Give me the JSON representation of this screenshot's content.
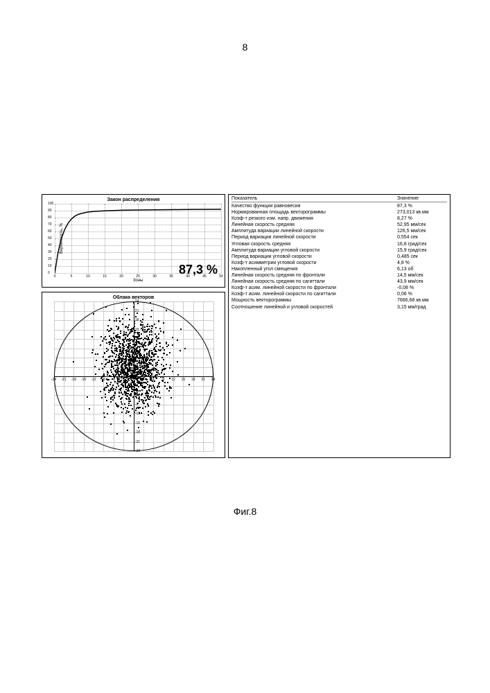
{
  "page_number": "8",
  "figure_caption": "Фиг.8",
  "line_chart": {
    "type": "line",
    "title": "Закон распределения",
    "ylabel": "Вероятность, %",
    "xlabel": "Зоны",
    "ylim": [
      0,
      100
    ],
    "xlim": [
      0,
      50
    ],
    "ytick_step": 10,
    "xtick_step": 5,
    "x_values": [
      0,
      1,
      2,
      3,
      4,
      5,
      6,
      7,
      8,
      9,
      10,
      12,
      14,
      16,
      18,
      20,
      25,
      30,
      35,
      40,
      45,
      50
    ],
    "y_values": [
      0,
      30,
      50,
      63,
      72,
      78,
      82,
      84.5,
      86,
      87,
      88,
      89,
      89.5,
      90,
      90.3,
      90.6,
      91,
      91.3,
      91.5,
      91.7,
      91.9,
      92
    ],
    "line_color": "#000000",
    "grid_color": "#aaaaaa",
    "background_color": "#ffffff",
    "annotation": "87,3 %",
    "annotation_fontsize": 18
  },
  "scatter_chart": {
    "type": "scatter",
    "title": "Облака векторов",
    "xlim": [
      -24,
      24
    ],
    "ylim": [
      -24,
      24
    ],
    "tick_step": 3,
    "grid_step": 3,
    "circle_radius": 24,
    "point_color": "#000000",
    "grid_color": "#cccccc",
    "axis_color": "#000000",
    "cluster_center_x": 0,
    "cluster_center_y": 3,
    "cluster_sigma_x": 4.5,
    "cluster_sigma_y": 7,
    "n_points": 1400,
    "seed": 42
  },
  "table": {
    "header_name": "Показатель",
    "header_value": "Значение",
    "rows": [
      {
        "name": "Качество функции равновесия",
        "value": "87,3 %"
      },
      {
        "name": "Нормированная площадь векторограммы",
        "value": "273,013 кв.мм"
      },
      {
        "name": "Коэф-т резкого изм. напр. движения",
        "value": "8,27 %"
      },
      {
        "name": "Линейная скорость средняя",
        "value": "52,95 мм/сек"
      },
      {
        "name": "Амплитуда вариации линейной скорости",
        "value": "126,5 мм/сек"
      },
      {
        "name": "Период вариации линейной скорости",
        "value": "0,554 сек"
      },
      {
        "name": "Угловая скорость средняя",
        "value": "16,8 град/сек"
      },
      {
        "name": "Амплитуда вариации угловой скорости",
        "value": "15,9 град/сек"
      },
      {
        "name": "Период вариации угловой скорости",
        "value": "0,485 сек"
      },
      {
        "name": "Коэф-т асимметрии угловой скорости",
        "value": "4,8 %"
      },
      {
        "name": "Накопленный угол смещения",
        "value": "6,13 об"
      },
      {
        "name": "Линейная скорость средняя по фронтали",
        "value": "14,5 мм/сек"
      },
      {
        "name": "Линейная скорость средняя по сагиттали",
        "value": "43,9 мм/сек"
      },
      {
        "name": "Коэф-т асим. линейной скорости по фронтали",
        "value": "-0,08 %"
      },
      {
        "name": "Коэф-т асим. линейной скорости по сагиттали",
        "value": "0,06 %"
      },
      {
        "name": "Мощность векторограммы",
        "value": "7666,68 кв.мм"
      },
      {
        "name": "Соотношение линейной и угловой скоростей",
        "value": "3,15 мм/град"
      }
    ]
  }
}
